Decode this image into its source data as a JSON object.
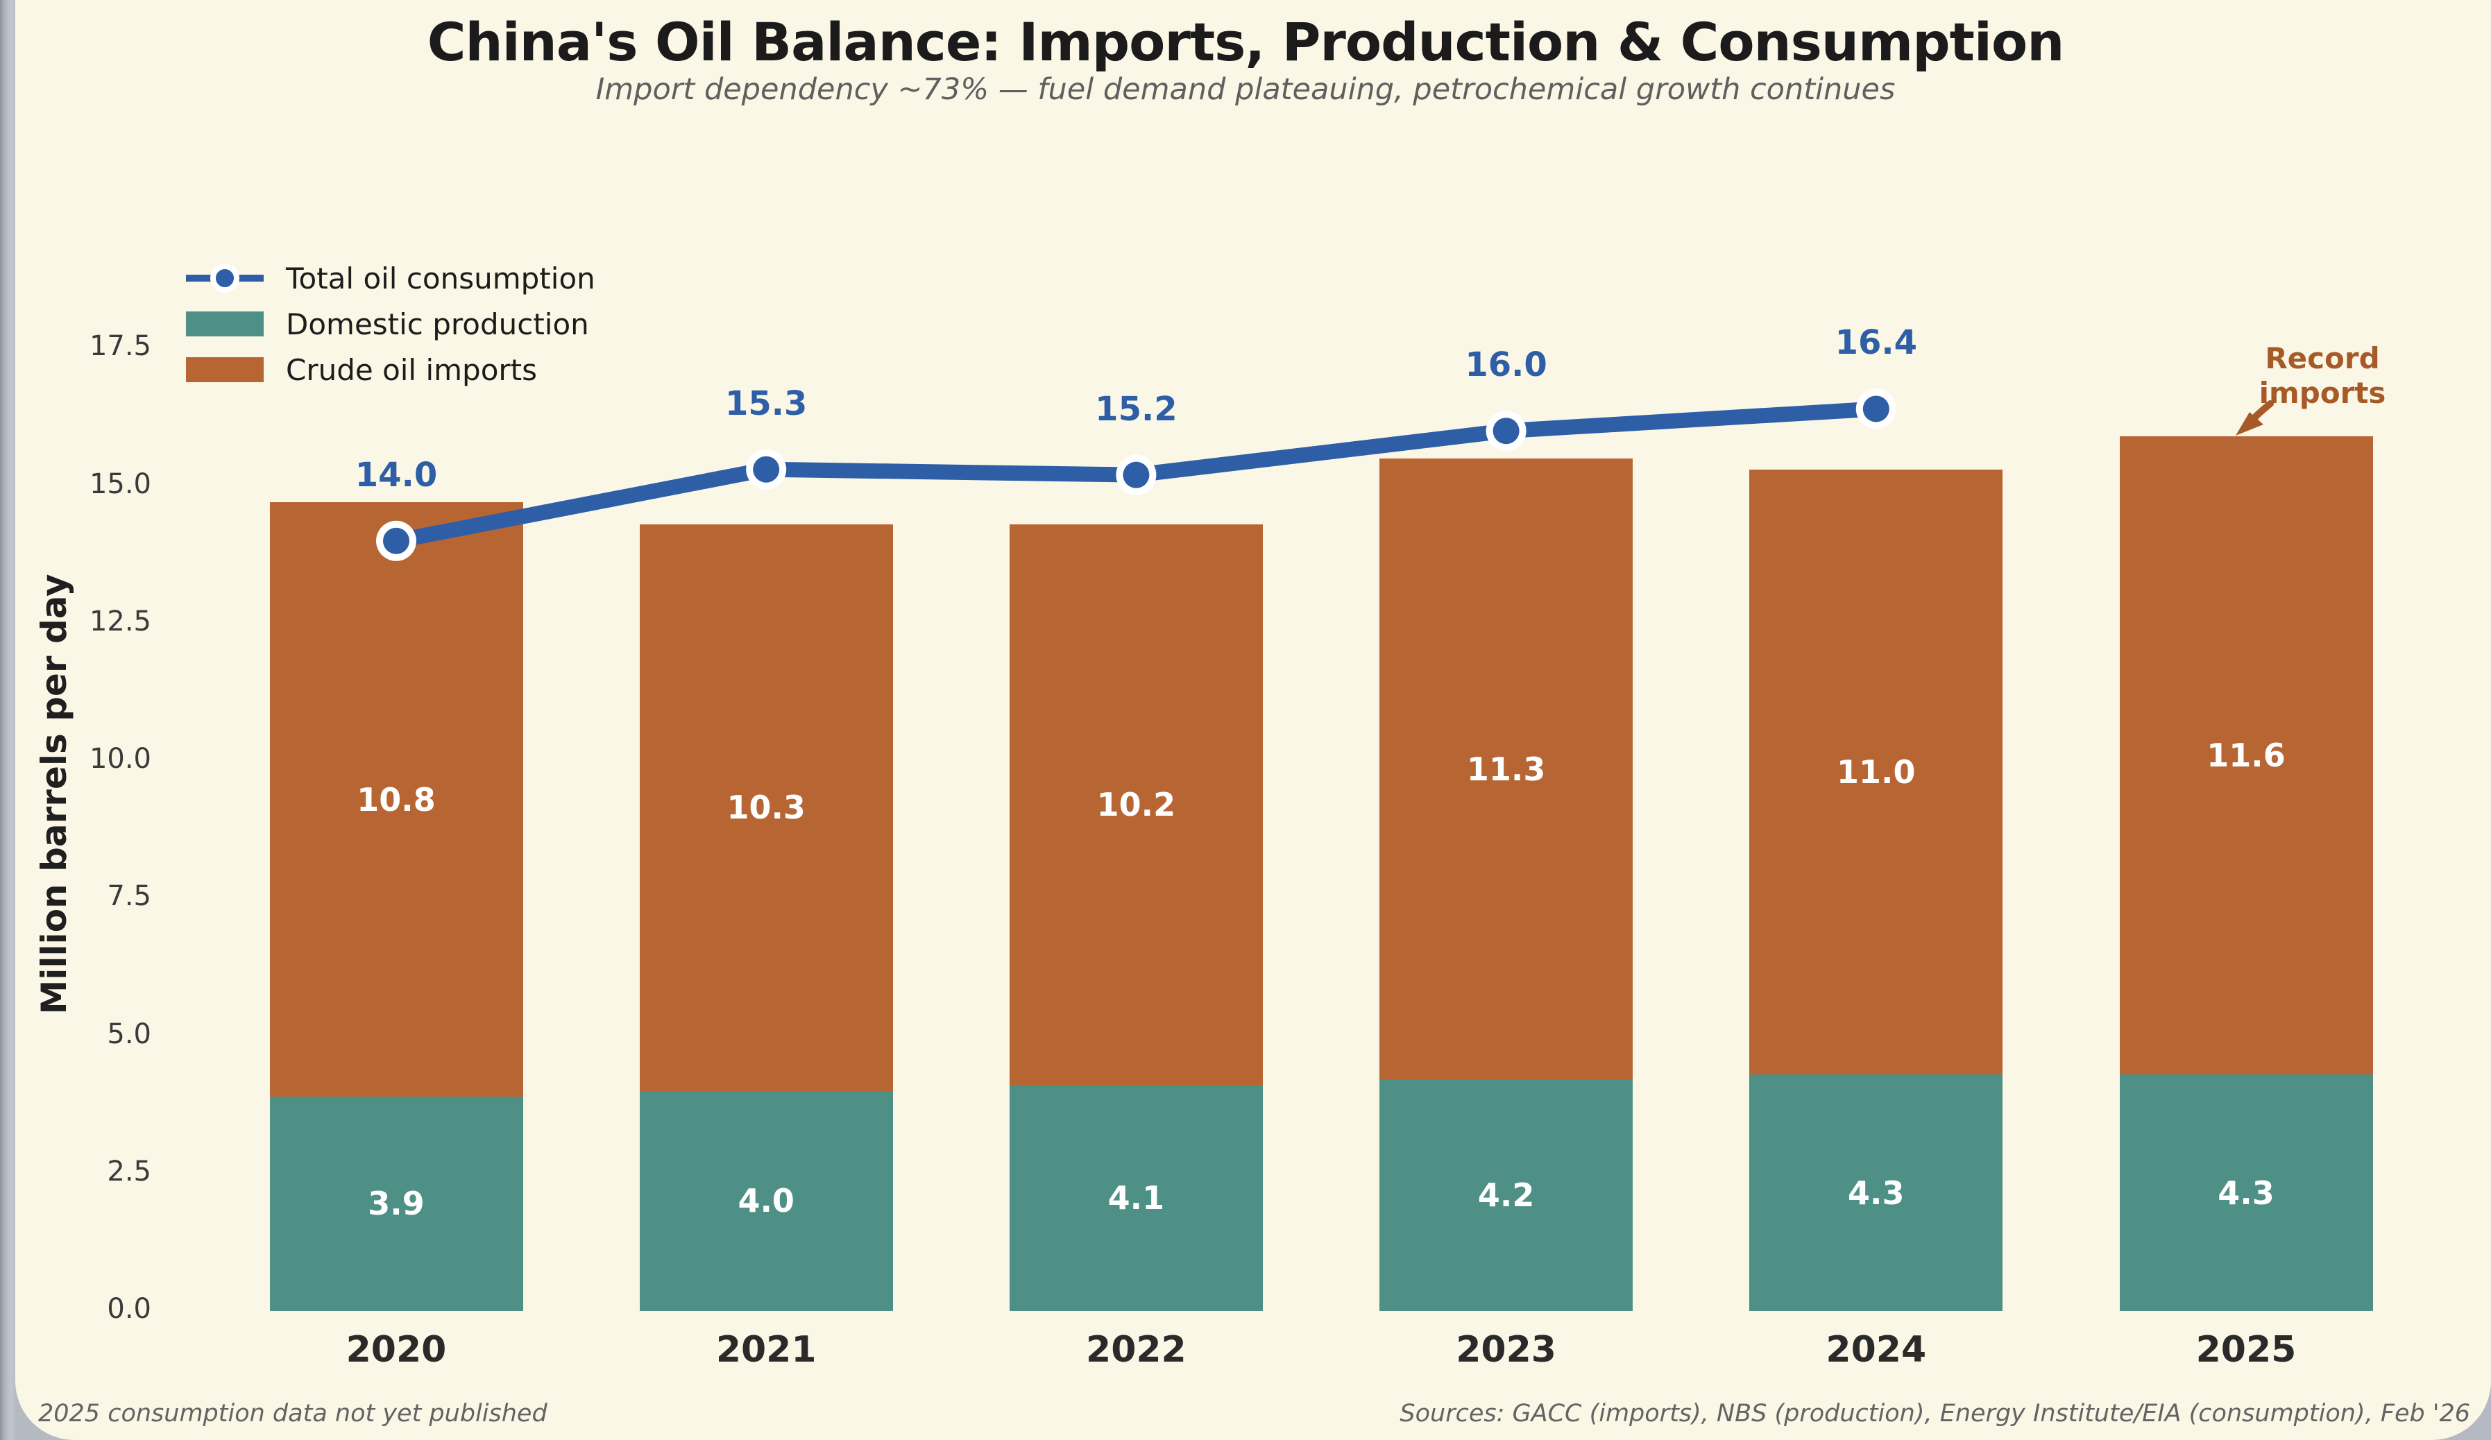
{
  "header": {
    "title": "China's Oil Balance: Imports, Production & Consumption",
    "subtitle": "Import dependency ~73% — fuel demand plateauing, petrochemical growth continues"
  },
  "footer": {
    "left": "2025 consumption data not yet published",
    "right": "Sources: GACC (imports), NBS (production), Energy Institute/EIA (consumption), Feb '26"
  },
  "colors": {
    "page_background": "#b5b9c1",
    "card_background": "#fbf7e7",
    "production": "#4f9086",
    "imports": "#b76533",
    "consumption": "#2d5ea6",
    "annotation": "#a65a28",
    "bar_label": "#ffffff",
    "tick_label": "#3a3a3a",
    "x_label": "#2a2a2a"
  },
  "chart_data": {
    "type": "bar",
    "subtype": "stacked-bars-with-line",
    "categories": [
      "2020",
      "2021",
      "2022",
      "2023",
      "2024",
      "2025"
    ],
    "series": [
      {
        "name": "Domestic production",
        "type": "bar",
        "color_key": "production",
        "values": [
          3.9,
          4.0,
          4.1,
          4.2,
          4.3,
          4.3
        ]
      },
      {
        "name": "Crude oil imports",
        "type": "bar",
        "color_key": "imports",
        "values": [
          10.8,
          10.3,
          10.2,
          11.3,
          11.0,
          11.6
        ]
      },
      {
        "name": "Total oil consumption",
        "type": "line",
        "color_key": "consumption",
        "values": [
          14.0,
          15.3,
          15.2,
          16.0,
          16.4,
          null
        ]
      }
    ],
    "title": "China's Oil Balance: Imports, Production & Consumption",
    "xlabel": "",
    "ylabel": "Million barrels per day",
    "ylim": [
      0,
      17.5
    ],
    "yticks": [
      0,
      2.5,
      5,
      7.5,
      10,
      12.5,
      15,
      17.5
    ],
    "grid": false,
    "legend_position": "upper left",
    "annotation": {
      "line1": "Record",
      "line2": "imports"
    }
  }
}
